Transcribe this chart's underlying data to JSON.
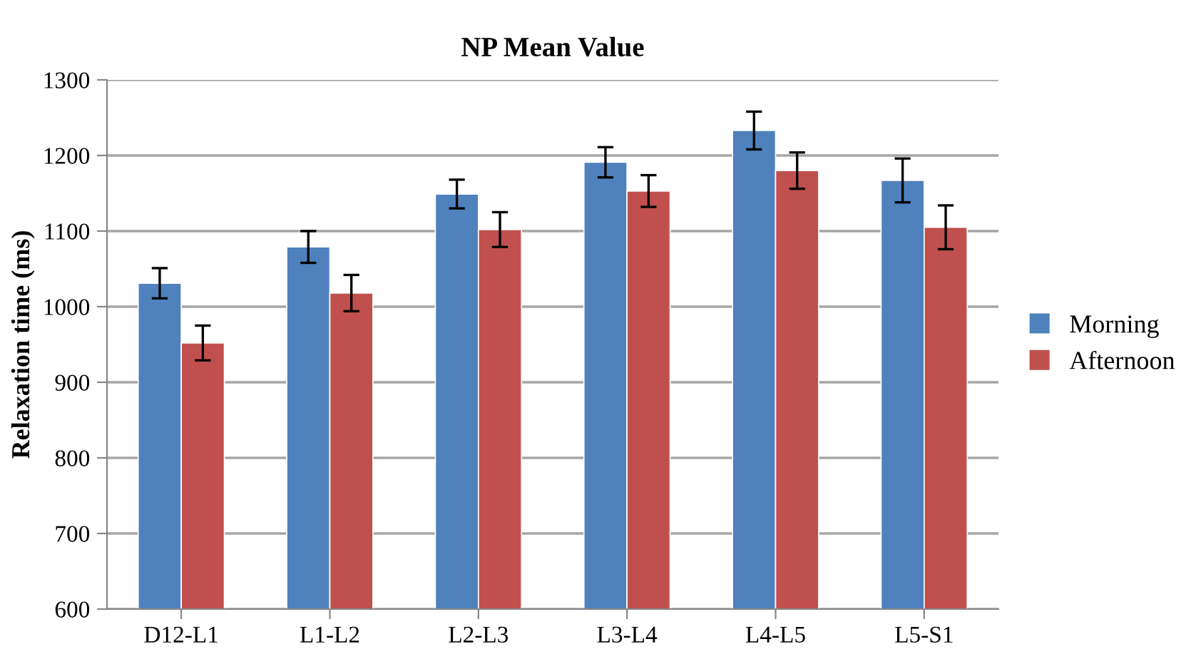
{
  "chart_data": {
    "type": "bar",
    "title": "NP Mean Value",
    "ylabel": "Relaxation time (ms)",
    "categories": [
      "D12-L1",
      "L1-L2",
      "L2-L3",
      "L3-L4",
      "L4-L5",
      "L5-S1"
    ],
    "series": [
      {
        "name": "Morning",
        "color": "#4f81bd",
        "values": [
          1031,
          1079,
          1149,
          1191,
          1233,
          1167
        ],
        "errors": [
          20,
          21,
          19,
          20,
          25,
          29
        ]
      },
      {
        "name": "Afternoon",
        "color": "#c0504d",
        "values": [
          952,
          1018,
          1102,
          1153,
          1180,
          1105
        ],
        "errors": [
          23,
          24,
          23,
          21,
          24,
          29
        ]
      }
    ],
    "ylim": [
      600,
      1300
    ],
    "yticks": [
      600,
      700,
      800,
      900,
      1000,
      1100,
      1200,
      1300
    ],
    "grid": "y",
    "legend": "right"
  }
}
